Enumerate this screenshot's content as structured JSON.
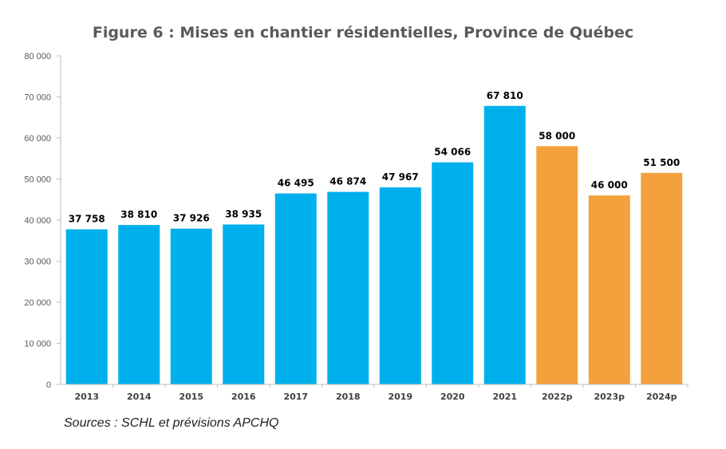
{
  "chart_data": {
    "type": "bar",
    "title": "Figure 6 : Mises en chantier résidentielles, Province de Québec",
    "categories": [
      "2013",
      "2014",
      "2015",
      "2016",
      "2017",
      "2018",
      "2019",
      "2020",
      "2021",
      "2022p",
      "2023p",
      "2024p"
    ],
    "values": [
      37758,
      38810,
      37926,
      38935,
      46495,
      46874,
      47967,
      54066,
      67810,
      58000,
      46000,
      51500
    ],
    "data_labels": [
      "37 758",
      "38 810",
      "37 926",
      "38 935",
      "46 495",
      "46 874",
      "47 967",
      "54 066",
      "67 810",
      "58 000",
      "46 000",
      "51 500"
    ],
    "y_ticks": [
      0,
      10000,
      20000,
      30000,
      40000,
      50000,
      60000,
      70000,
      80000
    ],
    "y_tick_labels": [
      "0",
      "10 000",
      "20 000",
      "30 000",
      "40 000",
      "50 000",
      "60 000",
      "70 000",
      "80 000"
    ],
    "ylim": [
      0,
      80000
    ],
    "grid": false,
    "colors": {
      "actual": "#00b0ec",
      "forecast": "#f4a13d"
    },
    "bar_colors": [
      "actual",
      "actual",
      "actual",
      "actual",
      "actual",
      "actual",
      "actual",
      "actual",
      "actual",
      "forecast",
      "forecast",
      "forecast"
    ],
    "xlabel": "",
    "ylabel": ""
  },
  "source": "Sources : SCHL et prévisions APCHQ"
}
